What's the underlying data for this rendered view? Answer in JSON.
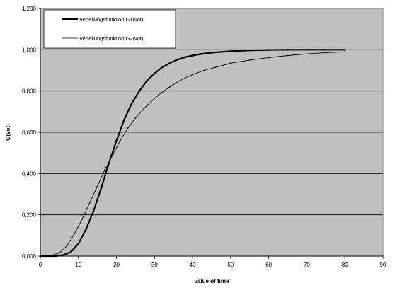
{
  "chart_data": {
    "type": "line",
    "xlabel": "value of time",
    "ylabel": "G(vot)",
    "xlim": [
      0,
      90
    ],
    "ylim": [
      0,
      1.2
    ],
    "x_ticks": [
      "0",
      "10",
      "20",
      "30",
      "40",
      "50",
      "60",
      "70",
      "80",
      "90"
    ],
    "y_ticks": [
      "0,000",
      "0,200",
      "0,400",
      "0,600",
      "0,800",
      "1,000",
      "1,200"
    ],
    "grid": "horizontal",
    "legend_position": "top-left",
    "colors": {
      "plot_background": "#c0c0c0",
      "page_background": "#ffffff",
      "series": "#000000"
    },
    "series": [
      {
        "name": "Verteilungsfunktion G1(vot)",
        "style": "thick-solid",
        "x": [
          0,
          4,
          6,
          8,
          10,
          12,
          14,
          16,
          18,
          20,
          22,
          24,
          26,
          28,
          30,
          32,
          34,
          36,
          38,
          40,
          42,
          45,
          50,
          55,
          60,
          65,
          70,
          75,
          80
        ],
        "y": [
          0,
          0,
          0.005,
          0.02,
          0.06,
          0.13,
          0.22,
          0.33,
          0.45,
          0.56,
          0.66,
          0.74,
          0.8,
          0.85,
          0.885,
          0.915,
          0.935,
          0.952,
          0.964,
          0.972,
          0.979,
          0.986,
          0.993,
          0.997,
          0.999,
          1.0,
          1.0,
          1.0,
          1.0
        ]
      },
      {
        "name": "Verteilungsfunktion G2(vot)",
        "style": "thin-marked",
        "x": [
          0,
          3,
          5,
          7,
          9,
          11,
          13,
          15,
          17,
          19,
          21,
          23,
          25,
          28,
          31,
          34,
          37,
          40,
          43,
          46,
          50,
          55,
          60,
          65,
          70,
          75,
          80
        ],
        "y": [
          0,
          0.003,
          0.015,
          0.05,
          0.11,
          0.18,
          0.26,
          0.34,
          0.42,
          0.49,
          0.56,
          0.62,
          0.67,
          0.73,
          0.78,
          0.82,
          0.855,
          0.88,
          0.9,
          0.915,
          0.935,
          0.95,
          0.962,
          0.972,
          0.98,
          0.986,
          0.99
        ]
      }
    ]
  }
}
